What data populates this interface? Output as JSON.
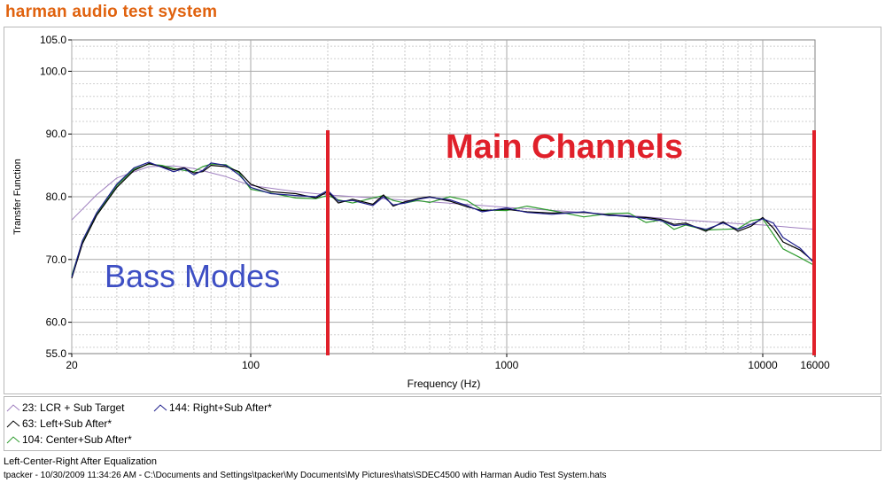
{
  "header": {
    "title": "harman audio test system"
  },
  "chart_data": {
    "type": "line",
    "x_scale": "log",
    "xlabel": "Frequency (Hz)",
    "ylabel": "Transfer Function",
    "xlim": [
      20,
      16000
    ],
    "ylim": [
      55,
      105
    ],
    "x_ticks": [
      20,
      100,
      1000,
      10000,
      16000
    ],
    "x_tick_labels": [
      "20",
      "100",
      "1000",
      "10000",
      "16000"
    ],
    "y_ticks": [
      55,
      60,
      70,
      80,
      90,
      100,
      105
    ],
    "y_tick_labels": [
      "55.0",
      "60.0",
      "70.0",
      "80.0",
      "90.0",
      "100.0",
      "105.0"
    ],
    "grid": true,
    "legend_position": "bottom",
    "series": [
      {
        "name": "23: LCR + Sub Target",
        "color": "#9f7fbf",
        "x": [
          20,
          25,
          30,
          40,
          50,
          60,
          80,
          100,
          150,
          200,
          300,
          500,
          800,
          1000,
          2000,
          3000,
          5000,
          8000,
          10000,
          16000
        ],
        "y": [
          76.3,
          80.3,
          83.0,
          84.8,
          84.9,
          84.5,
          83.2,
          81.8,
          80.8,
          80.3,
          79.8,
          79.2,
          78.6,
          78.3,
          77.5,
          77.0,
          76.3,
          75.7,
          75.5,
          74.8
        ]
      },
      {
        "name": "63: Left+Sub After*",
        "color": "#000000",
        "x": [
          20,
          22,
          25,
          30,
          35,
          40,
          45,
          50,
          55,
          60,
          65,
          70,
          80,
          90,
          100,
          120,
          150,
          180,
          200,
          220,
          250,
          300,
          330,
          360,
          400,
          450,
          500,
          600,
          700,
          800,
          1000,
          1200,
          1500,
          2000,
          2500,
          3000,
          3500,
          4000,
          4500,
          5000,
          6000,
          7000,
          8000,
          9000,
          10000,
          11000,
          12000,
          14000,
          16000
        ],
        "y": [
          67.0,
          72.5,
          77.0,
          81.5,
          84.2,
          85.3,
          84.8,
          84.3,
          84.6,
          83.8,
          84.0,
          85.0,
          84.8,
          84.0,
          82.0,
          80.8,
          80.5,
          79.8,
          80.8,
          79.0,
          79.6,
          78.8,
          80.3,
          78.5,
          79.2,
          79.7,
          80.0,
          79.3,
          78.4,
          77.8,
          78.0,
          77.6,
          77.4,
          77.5,
          77.1,
          76.8,
          76.7,
          76.4,
          75.6,
          75.8,
          74.5,
          76.0,
          74.5,
          75.3,
          76.7,
          75.0,
          72.8,
          71.5,
          69.5
        ]
      },
      {
        "name": "144: Right+Sub After*",
        "color": "#1e1e8c",
        "x": [
          20,
          22,
          25,
          30,
          35,
          40,
          45,
          50,
          55,
          60,
          65,
          70,
          80,
          90,
          100,
          120,
          150,
          180,
          200,
          220,
          250,
          300,
          330,
          360,
          400,
          450,
          500,
          600,
          700,
          800,
          1000,
          1200,
          1500,
          2000,
          2500,
          3000,
          3500,
          4000,
          4500,
          5000,
          6000,
          7000,
          8000,
          9000,
          10000,
          11000,
          12000,
          14000,
          16000
        ],
        "y": [
          67.2,
          73.0,
          77.4,
          82.0,
          84.6,
          85.5,
          84.7,
          84.0,
          84.5,
          83.5,
          84.2,
          85.4,
          85.0,
          83.5,
          81.5,
          80.5,
          80.2,
          80.0,
          81.0,
          79.3,
          79.4,
          78.6,
          80.0,
          78.7,
          79.0,
          79.6,
          79.9,
          79.5,
          78.6,
          77.6,
          78.2,
          77.5,
          77.2,
          77.6,
          77.0,
          76.9,
          76.5,
          76.2,
          75.4,
          75.6,
          74.8,
          75.8,
          74.8,
          75.6,
          76.5,
          75.8,
          73.5,
          71.8,
          69.3
        ]
      },
      {
        "name": "104: Center+Sub After*",
        "color": "#2e9c2e",
        "x": [
          20,
          22,
          25,
          30,
          35,
          40,
          45,
          50,
          55,
          60,
          65,
          70,
          80,
          90,
          100,
          120,
          150,
          180,
          200,
          220,
          250,
          300,
          330,
          360,
          400,
          450,
          500,
          600,
          700,
          800,
          1000,
          1200,
          1500,
          2000,
          2500,
          3000,
          3500,
          4000,
          4500,
          5000,
          6000,
          7000,
          8000,
          9000,
          10000,
          11000,
          12000,
          14000,
          16000
        ],
        "y": [
          67.5,
          72.8,
          77.2,
          81.8,
          84.4,
          85.2,
          85.0,
          84.5,
          84.2,
          84.0,
          84.8,
          85.2,
          85.1,
          83.8,
          81.2,
          80.6,
          79.8,
          79.7,
          80.2,
          79.5,
          79.0,
          79.8,
          80.2,
          79.4,
          79.0,
          79.4,
          79.1,
          80.0,
          79.4,
          77.9,
          77.8,
          78.5,
          77.8,
          76.8,
          77.3,
          77.4,
          75.9,
          76.3,
          74.8,
          75.5,
          74.7,
          74.8,
          74.9,
          76.2,
          76.5,
          74.0,
          71.7,
          70.3,
          69.0
        ]
      }
    ],
    "region_markers": [
      200,
      16000
    ],
    "annotations": [
      {
        "text": "Main Channels",
        "color": "#e0202a"
      },
      {
        "text": "Bass Modes",
        "color": "#3e4fc4"
      }
    ]
  },
  "legend": {
    "items": [
      {
        "label": "23: LCR + Sub Target",
        "color": "#9f7fbf"
      },
      {
        "label": "144: Right+Sub After*",
        "color": "#1e1e8c"
      },
      {
        "label": "63: Left+Sub After*",
        "color": "#000000"
      },
      {
        "label": "104: Center+Sub After*",
        "color": "#2e9c2e"
      }
    ]
  },
  "caption": "Left-Center-Right After Equalization",
  "footer": "tpacker - 10/30/2009 11:34:26 AM - C:\\Documents and Settings\\tpacker\\My Documents\\My Pictures\\hats\\SDEC4500 with Harman Audio Test System.hats"
}
